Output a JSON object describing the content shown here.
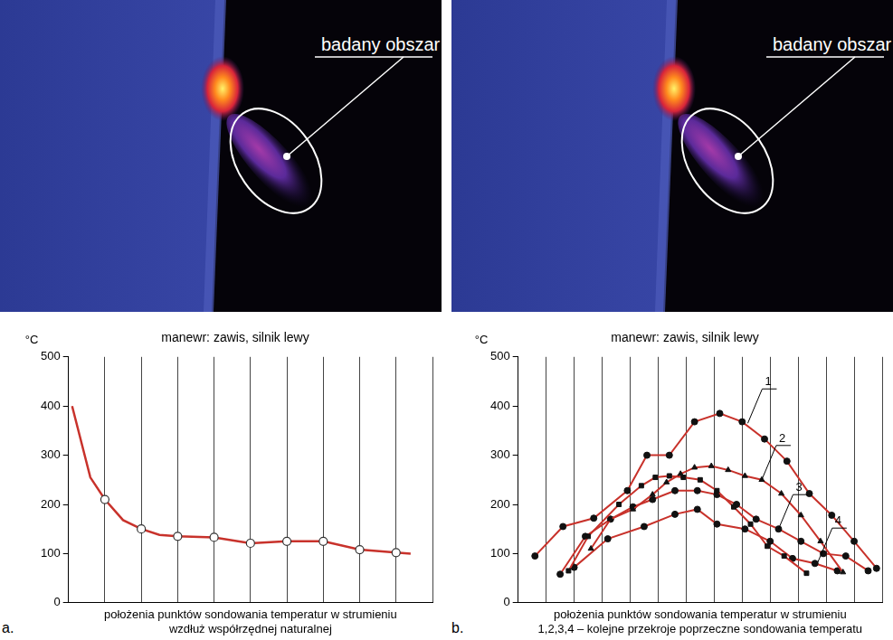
{
  "images": [
    {
      "label": "badany obszar"
    },
    {
      "label": "badany obszar"
    }
  ],
  "panel_letters": [
    "a.",
    "b."
  ],
  "chart_data": [
    {
      "type": "line",
      "title": "manewr: zawis, silnik lewy",
      "ylabel": "°C",
      "xlabel": [
        "położenia punktów sondowania temperatur w strumieniu",
        "wzdłuż współrzędnej naturalnej"
      ],
      "series": [
        {
          "type": "line",
          "color": "#c8322b",
          "marker": "none",
          "x": [
            0.1,
            0.6,
            1,
            1.5,
            2,
            2.5,
            3,
            4,
            5,
            6,
            7,
            8,
            9,
            9.4
          ],
          "values": [
            400,
            255,
            210,
            168,
            150,
            138,
            135,
            133,
            121,
            125,
            125,
            108,
            102,
            100
          ]
        },
        {
          "type": "scatter",
          "color": "#333333",
          "marker": "circle",
          "x": [
            1,
            2,
            3,
            4,
            5,
            6,
            7,
            8,
            9
          ],
          "values": [
            210,
            150,
            135,
            133,
            121,
            125,
            125,
            108,
            102
          ]
        }
      ],
      "xlim": [
        0,
        10
      ],
      "xticks": [
        0,
        1,
        2,
        3,
        4,
        5,
        6,
        7,
        8,
        9,
        10
      ],
      "ylim": [
        0,
        500
      ],
      "yticks": [
        0,
        100,
        200,
        300,
        400,
        500
      ],
      "grid": "x",
      "tick_labels": "y"
    },
    {
      "type": "line",
      "title": "manewr: zawis, silnik lewy",
      "ylabel": "°C",
      "xlabel": "położenia punktów sondowania temperatur w strumieniu",
      "caption": "1,2,3,4 – kolejne przekroje poprzeczne sondowania temperatu",
      "series": [
        {
          "color": "#c8322b",
          "marker": "circle",
          "x": [
            0.6,
            1.6,
            2.7,
            3.9,
            4.6,
            5.4,
            6.3,
            7.2,
            8.0,
            8.8,
            9.6,
            10.4,
            11.2,
            12.0,
            12.8
          ],
          "values": [
            95,
            155,
            172,
            228,
            300,
            300,
            368,
            385,
            368,
            333,
            288,
            222,
            178,
            125,
            70
          ]
        },
        {
          "color": "#c8322b",
          "marker": "triangle",
          "x": [
            2.6,
            3.3,
            4.1,
            4.8,
            5.3,
            5.8,
            6.3,
            6.9,
            7.5,
            8.1,
            8.7,
            9.4,
            10.1,
            10.8,
            11.6
          ],
          "values": [
            110,
            170,
            190,
            220,
            245,
            262,
            275,
            278,
            270,
            258,
            250,
            222,
            178,
            125,
            62
          ]
        },
        {
          "color": "#c8322b",
          "marker": "square",
          "x": [
            1.8,
            2.5,
            3.6,
            4.4,
            4.9,
            5.4,
            5.9,
            6.5,
            7.1,
            7.7,
            8.3,
            8.9,
            9.5,
            10.3
          ],
          "values": [
            65,
            135,
            200,
            238,
            255,
            258,
            255,
            250,
            228,
            195,
            160,
            115,
            95,
            60
          ]
        },
        {
          "color": "#c8322b",
          "marker": "circle",
          "x": [
            1.5,
            2.4,
            3.3,
            4.1,
            4.8,
            5.6,
            6.4,
            7.1,
            7.8,
            8.5,
            9.3,
            10.1,
            10.9,
            11.7,
            12.5
          ],
          "values": [
            58,
            135,
            170,
            195,
            210,
            228,
            228,
            220,
            200,
            170,
            150,
            125,
            100,
            95,
            65
          ]
        },
        {
          "color": "#c8322b",
          "marker": "circle",
          "x": [
            2.0,
            3.2,
            4.5,
            5.6,
            6.4,
            7.1,
            8.1,
            9.0,
            9.8,
            10.6,
            11.4
          ],
          "values": [
            72,
            130,
            155,
            180,
            190,
            160,
            150,
            125,
            90,
            80,
            65
          ]
        }
      ],
      "annotations": [
        {
          "text": "1",
          "x": 8.2,
          "y": 365
        },
        {
          "text": "2",
          "x": 8.7,
          "y": 250
        },
        {
          "text": "3",
          "x": 9.3,
          "y": 150
        },
        {
          "text": "4",
          "x": 10.7,
          "y": 82
        }
      ],
      "xlim": [
        0,
        13
      ],
      "xticks": [
        0,
        1,
        2,
        3,
        4,
        5,
        6,
        7,
        8,
        9,
        10,
        11,
        12,
        13
      ],
      "ylim": [
        0,
        500
      ],
      "yticks": [
        0,
        100,
        200,
        300,
        400,
        500
      ],
      "grid": "x",
      "tick_labels": "y"
    }
  ]
}
